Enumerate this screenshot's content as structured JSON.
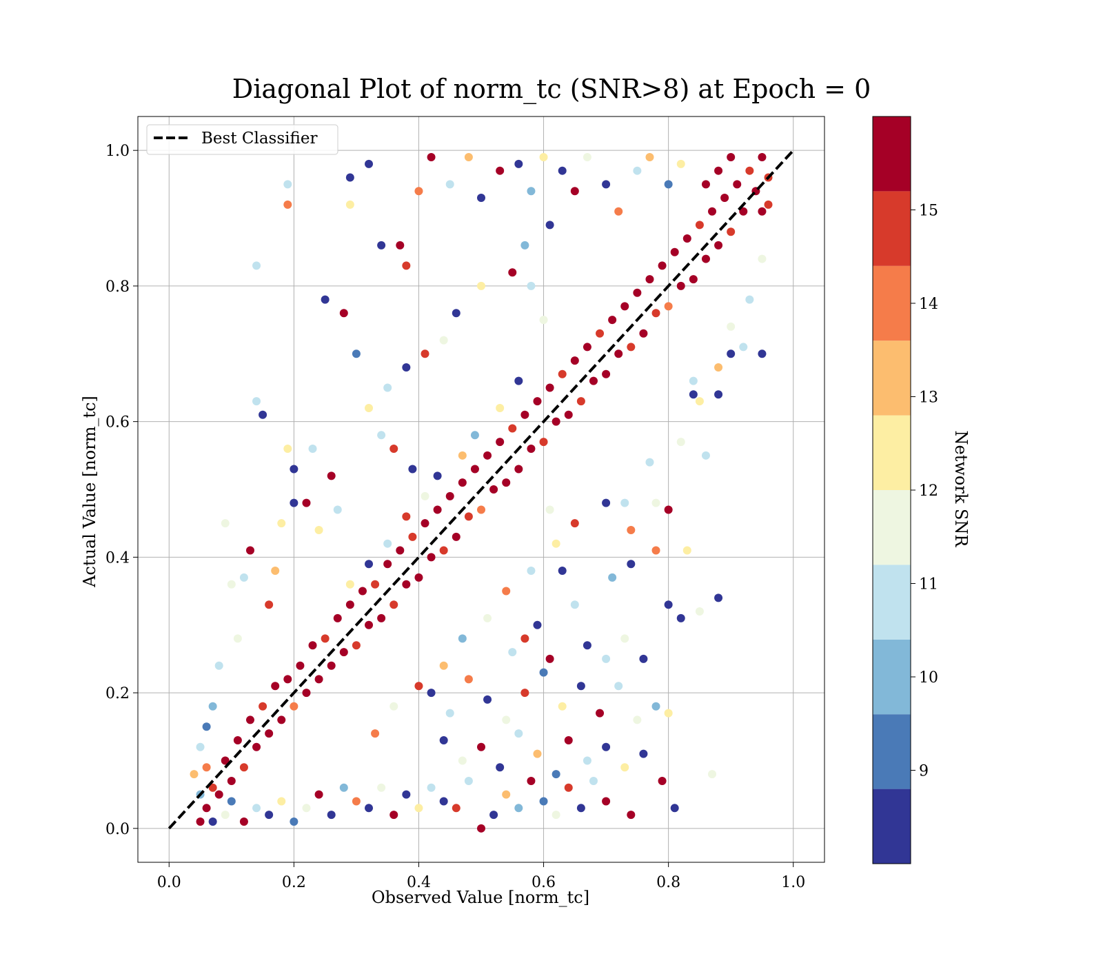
{
  "chart_data": {
    "type": "scatter",
    "title": "Diagonal Plot of norm_tc (SNR>8) at Epoch = 0",
    "xlabel": "Observed Value [norm_tc]",
    "ylabel": "Actual Value [norm_tc]",
    "xlim": [
      -0.05,
      1.05
    ],
    "ylim": [
      -0.05,
      1.05
    ],
    "xticks": [
      "0.0",
      "0.2",
      "0.4",
      "0.6",
      "0.8",
      "1.0"
    ],
    "yticks": [
      "0.0",
      "0.2",
      "0.4",
      "0.6",
      "0.8",
      "1.0"
    ],
    "grid": true,
    "legend": {
      "position": "upper-left",
      "entries": [
        {
          "label": "Best Classifier",
          "style": "dashed",
          "color": "#000000"
        }
      ]
    },
    "reference_line": {
      "label": "Best Classifier",
      "x": [
        0.0,
        1.0
      ],
      "y": [
        0.0,
        1.0
      ]
    },
    "colorbar": {
      "label": "Network SNR",
      "range": [
        8,
        16
      ],
      "ticks": [
        "9",
        "10",
        "11",
        "12",
        "13",
        "14",
        "15"
      ],
      "bins": [
        {
          "from": 8,
          "to": 8.8,
          "color": "#313695"
        },
        {
          "from": 8.8,
          "to": 9.6,
          "color": "#4a7ab7"
        },
        {
          "from": 9.6,
          "to": 10.4,
          "color": "#82b8d8"
        },
        {
          "from": 10.4,
          "to": 11.2,
          "color": "#c0e2ee"
        },
        {
          "from": 11.2,
          "to": 12.0,
          "color": "#eef6e1"
        },
        {
          "from": 12.0,
          "to": 12.8,
          "color": "#fdeea3"
        },
        {
          "from": 12.8,
          "to": 13.6,
          "color": "#fcbd6f"
        },
        {
          "from": 13.6,
          "to": 14.4,
          "color": "#f57c4a"
        },
        {
          "from": 14.4,
          "to": 15.2,
          "color": "#d73a2b"
        },
        {
          "from": 15.2,
          "to": 16.0,
          "color": "#a50026"
        }
      ]
    },
    "points": [
      [
        0.05,
        0.01,
        15.8
      ],
      [
        0.06,
        0.03,
        15.6
      ],
      [
        0.07,
        0.06,
        15.1
      ],
      [
        0.08,
        0.05,
        15.7
      ],
      [
        0.06,
        0.09,
        14.2
      ],
      [
        0.09,
        0.1,
        15.9
      ],
      [
        0.1,
        0.07,
        15.4
      ],
      [
        0.11,
        0.13,
        15.8
      ],
      [
        0.12,
        0.09,
        14.8
      ],
      [
        0.13,
        0.16,
        15.6
      ],
      [
        0.14,
        0.12,
        15.9
      ],
      [
        0.15,
        0.18,
        14.6
      ],
      [
        0.16,
        0.14,
        15.7
      ],
      [
        0.17,
        0.21,
        15.9
      ],
      [
        0.18,
        0.16,
        15.2
      ],
      [
        0.19,
        0.22,
        15.8
      ],
      [
        0.2,
        0.18,
        14.3
      ],
      [
        0.21,
        0.24,
        15.7
      ],
      [
        0.22,
        0.2,
        15.9
      ],
      [
        0.23,
        0.27,
        15.4
      ],
      [
        0.24,
        0.22,
        15.8
      ],
      [
        0.25,
        0.28,
        14.7
      ],
      [
        0.26,
        0.24,
        15.9
      ],
      [
        0.27,
        0.31,
        15.6
      ],
      [
        0.28,
        0.26,
        15.3
      ],
      [
        0.29,
        0.33,
        15.9
      ],
      [
        0.3,
        0.27,
        14.4
      ],
      [
        0.31,
        0.35,
        15.8
      ],
      [
        0.32,
        0.3,
        15.7
      ],
      [
        0.33,
        0.36,
        15.1
      ],
      [
        0.34,
        0.31,
        15.9
      ],
      [
        0.35,
        0.39,
        15.5
      ],
      [
        0.36,
        0.33,
        14.9
      ],
      [
        0.37,
        0.41,
        15.8
      ],
      [
        0.38,
        0.36,
        15.9
      ],
      [
        0.39,
        0.43,
        14.5
      ],
      [
        0.4,
        0.37,
        15.7
      ],
      [
        0.41,
        0.45,
        15.9
      ],
      [
        0.42,
        0.4,
        15.2
      ],
      [
        0.43,
        0.47,
        15.8
      ],
      [
        0.44,
        0.41,
        14.6
      ],
      [
        0.45,
        0.49,
        15.9
      ],
      [
        0.46,
        0.43,
        15.6
      ],
      [
        0.47,
        0.51,
        15.8
      ],
      [
        0.48,
        0.46,
        15.0
      ],
      [
        0.49,
        0.53,
        15.9
      ],
      [
        0.5,
        0.47,
        14.3
      ],
      [
        0.51,
        0.55,
        15.7
      ],
      [
        0.52,
        0.5,
        15.9
      ],
      [
        0.53,
        0.57,
        15.4
      ],
      [
        0.54,
        0.51,
        15.8
      ],
      [
        0.55,
        0.59,
        14.8
      ],
      [
        0.56,
        0.53,
        15.9
      ],
      [
        0.57,
        0.61,
        15.6
      ],
      [
        0.58,
        0.56,
        15.2
      ],
      [
        0.59,
        0.63,
        15.9
      ],
      [
        0.6,
        0.57,
        14.5
      ],
      [
        0.61,
        0.65,
        15.8
      ],
      [
        0.62,
        0.6,
        15.7
      ],
      [
        0.63,
        0.67,
        15.1
      ],
      [
        0.64,
        0.61,
        15.9
      ],
      [
        0.65,
        0.69,
        15.5
      ],
      [
        0.66,
        0.63,
        14.7
      ],
      [
        0.67,
        0.71,
        15.8
      ],
      [
        0.68,
        0.66,
        15.9
      ],
      [
        0.69,
        0.73,
        14.4
      ],
      [
        0.7,
        0.67,
        15.7
      ],
      [
        0.71,
        0.75,
        15.9
      ],
      [
        0.72,
        0.7,
        15.3
      ],
      [
        0.73,
        0.77,
        15.8
      ],
      [
        0.74,
        0.71,
        14.6
      ],
      [
        0.75,
        0.79,
        15.9
      ],
      [
        0.76,
        0.73,
        15.6
      ],
      [
        0.77,
        0.81,
        15.8
      ],
      [
        0.78,
        0.76,
        15.0
      ],
      [
        0.79,
        0.83,
        15.9
      ],
      [
        0.8,
        0.77,
        14.2
      ],
      [
        0.81,
        0.85,
        15.7
      ],
      [
        0.82,
        0.8,
        15.9
      ],
      [
        0.83,
        0.87,
        15.4
      ],
      [
        0.84,
        0.81,
        15.8
      ],
      [
        0.85,
        0.89,
        14.9
      ],
      [
        0.86,
        0.84,
        15.9
      ],
      [
        0.87,
        0.91,
        15.6
      ],
      [
        0.88,
        0.86,
        15.2
      ],
      [
        0.89,
        0.93,
        15.9
      ],
      [
        0.9,
        0.88,
        14.5
      ],
      [
        0.91,
        0.95,
        15.8
      ],
      [
        0.92,
        0.91,
        15.7
      ],
      [
        0.93,
        0.97,
        15.1
      ],
      [
        0.94,
        0.94,
        15.9
      ],
      [
        0.95,
        0.99,
        15.5
      ],
      [
        0.96,
        0.96,
        14.8
      ],
      [
        0.9,
        0.99,
        15.8
      ],
      [
        0.88,
        0.97,
        15.9
      ],
      [
        0.86,
        0.95,
        15.6
      ],
      [
        0.95,
        0.91,
        15.3
      ],
      [
        0.96,
        0.92,
        14.6
      ],
      [
        0.19,
        0.95,
        10.8
      ],
      [
        0.19,
        0.92,
        14.3
      ],
      [
        0.14,
        0.83,
        11.0
      ],
      [
        0.29,
        0.96,
        8.2
      ],
      [
        0.32,
        0.98,
        8.3
      ],
      [
        0.37,
        0.86,
        15.8
      ],
      [
        0.34,
        0.86,
        8.4
      ],
      [
        0.4,
        0.94,
        14.2
      ],
      [
        0.38,
        0.83,
        15.1
      ],
      [
        0.25,
        0.78,
        8.5
      ],
      [
        0.29,
        0.92,
        12.4
      ],
      [
        0.42,
        0.99,
        15.7
      ],
      [
        0.45,
        0.95,
        11.1
      ],
      [
        0.48,
        0.99,
        12.8
      ],
      [
        0.5,
        0.93,
        8.6
      ],
      [
        0.53,
        0.97,
        15.5
      ],
      [
        0.56,
        0.98,
        8.3
      ],
      [
        0.58,
        0.94,
        10.1
      ],
      [
        0.6,
        0.99,
        12.2
      ],
      [
        0.63,
        0.97,
        8.7
      ],
      [
        0.65,
        0.94,
        15.3
      ],
      [
        0.67,
        0.99,
        11.3
      ],
      [
        0.7,
        0.95,
        8.2
      ],
      [
        0.72,
        0.91,
        14.1
      ],
      [
        0.75,
        0.97,
        10.9
      ],
      [
        0.77,
        0.99,
        13.2
      ],
      [
        0.8,
        0.95,
        8.8
      ],
      [
        0.82,
        0.98,
        12.1
      ],
      [
        0.61,
        0.89,
        8.4
      ],
      [
        0.57,
        0.86,
        10.2
      ],
      [
        0.55,
        0.82,
        15.9
      ],
      [
        0.5,
        0.8,
        12.6
      ],
      [
        0.46,
        0.76,
        8.5
      ],
      [
        0.44,
        0.72,
        11.2
      ],
      [
        0.41,
        0.7,
        14.7
      ],
      [
        0.38,
        0.68,
        8.3
      ],
      [
        0.35,
        0.65,
        10.6
      ],
      [
        0.32,
        0.62,
        12.3
      ],
      [
        0.3,
        0.7,
        8.9
      ],
      [
        0.28,
        0.76,
        15.6
      ],
      [
        0.14,
        0.63,
        10.7
      ],
      [
        0.15,
        0.61,
        8.2
      ],
      [
        0.19,
        0.56,
        12.1
      ],
      [
        0.2,
        0.53,
        8.6
      ],
      [
        0.23,
        0.56,
        10.9
      ],
      [
        0.26,
        0.52,
        15.8
      ],
      [
        0.2,
        0.48,
        8.4
      ],
      [
        0.18,
        0.45,
        12.7
      ],
      [
        0.13,
        0.41,
        15.9
      ],
      [
        0.12,
        0.37,
        10.5
      ],
      [
        0.09,
        0.45,
        11.6
      ],
      [
        0.17,
        0.38,
        13.1
      ],
      [
        0.16,
        0.33,
        14.4
      ],
      [
        0.1,
        0.36,
        11.8
      ],
      [
        0.22,
        0.48,
        15.7
      ],
      [
        0.27,
        0.47,
        10.8
      ],
      [
        0.24,
        0.44,
        12.2
      ],
      [
        0.34,
        0.58,
        11.0
      ],
      [
        0.36,
        0.56,
        14.6
      ],
      [
        0.39,
        0.53,
        8.7
      ],
      [
        0.11,
        0.28,
        11.9
      ],
      [
        0.08,
        0.24,
        10.4
      ],
      [
        0.07,
        0.18,
        9.8
      ],
      [
        0.06,
        0.15,
        9.2
      ],
      [
        0.05,
        0.12,
        10.7
      ],
      [
        0.04,
        0.08,
        13.2
      ],
      [
        0.05,
        0.05,
        10.1
      ],
      [
        0.07,
        0.01,
        8.6
      ],
      [
        0.09,
        0.02,
        11.5
      ],
      [
        0.1,
        0.04,
        9.4
      ],
      [
        0.12,
        0.01,
        15.7
      ],
      [
        0.14,
        0.03,
        10.8
      ],
      [
        0.16,
        0.02,
        8.3
      ],
      [
        0.18,
        0.04,
        12.6
      ],
      [
        0.2,
        0.01,
        8.9
      ],
      [
        0.22,
        0.03,
        11.2
      ],
      [
        0.24,
        0.05,
        15.4
      ],
      [
        0.26,
        0.02,
        8.5
      ],
      [
        0.28,
        0.06,
        10.3
      ],
      [
        0.3,
        0.04,
        14.1
      ],
      [
        0.32,
        0.03,
        8.7
      ],
      [
        0.34,
        0.06,
        11.7
      ],
      [
        0.36,
        0.02,
        15.9
      ],
      [
        0.38,
        0.05,
        8.4
      ],
      [
        0.4,
        0.03,
        12.1
      ],
      [
        0.42,
        0.06,
        10.6
      ],
      [
        0.44,
        0.04,
        8.2
      ],
      [
        0.46,
        0.03,
        14.8
      ],
      [
        0.48,
        0.07,
        11.1
      ],
      [
        0.5,
        0.0,
        15.8
      ],
      [
        0.52,
        0.02,
        8.6
      ],
      [
        0.54,
        0.05,
        12.9
      ],
      [
        0.56,
        0.03,
        10.2
      ],
      [
        0.58,
        0.07,
        15.3
      ],
      [
        0.6,
        0.04,
        8.8
      ],
      [
        0.62,
        0.02,
        11.4
      ],
      [
        0.64,
        0.06,
        14.5
      ],
      [
        0.66,
        0.03,
        8.3
      ],
      [
        0.68,
        0.07,
        10.9
      ],
      [
        0.7,
        0.04,
        15.6
      ],
      [
        0.44,
        0.13,
        8.5
      ],
      [
        0.47,
        0.1,
        11.3
      ],
      [
        0.5,
        0.12,
        15.2
      ],
      [
        0.53,
        0.09,
        8.4
      ],
      [
        0.56,
        0.14,
        10.5
      ],
      [
        0.59,
        0.11,
        13.0
      ],
      [
        0.62,
        0.08,
        8.9
      ],
      [
        0.64,
        0.13,
        15.8
      ],
      [
        0.67,
        0.1,
        11.0
      ],
      [
        0.7,
        0.12,
        8.3
      ],
      [
        0.73,
        0.09,
        12.5
      ],
      [
        0.76,
        0.11,
        8.7
      ],
      [
        0.79,
        0.07,
        15.9
      ],
      [
        0.81,
        0.03,
        8.5
      ],
      [
        0.74,
        0.02,
        15.5
      ],
      [
        0.87,
        0.08,
        11.7
      ],
      [
        0.42,
        0.2,
        8.6
      ],
      [
        0.45,
        0.17,
        10.4
      ],
      [
        0.48,
        0.22,
        14.0
      ],
      [
        0.51,
        0.19,
        8.2
      ],
      [
        0.54,
        0.16,
        11.6
      ],
      [
        0.57,
        0.2,
        15.1
      ],
      [
        0.6,
        0.23,
        8.9
      ],
      [
        0.63,
        0.18,
        12.3
      ],
      [
        0.66,
        0.21,
        8.4
      ],
      [
        0.69,
        0.17,
        15.7
      ],
      [
        0.72,
        0.21,
        10.8
      ],
      [
        0.75,
        0.16,
        11.9
      ],
      [
        0.78,
        0.18,
        10.1
      ],
      [
        0.8,
        0.17,
        12.4
      ],
      [
        0.67,
        0.27,
        8.5
      ],
      [
        0.7,
        0.25,
        10.9
      ],
      [
        0.73,
        0.28,
        11.8
      ],
      [
        0.76,
        0.25,
        8.3
      ],
      [
        0.8,
        0.33,
        8.6
      ],
      [
        0.82,
        0.31,
        8.5
      ],
      [
        0.85,
        0.32,
        11.6
      ],
      [
        0.88,
        0.34,
        8.2
      ],
      [
        0.71,
        0.37,
        9.8
      ],
      [
        0.74,
        0.39,
        8.5
      ],
      [
        0.7,
        0.48,
        8.7
      ],
      [
        0.73,
        0.48,
        10.6
      ],
      [
        0.78,
        0.48,
        11.3
      ],
      [
        0.8,
        0.47,
        15.9
      ],
      [
        0.78,
        0.41,
        14.3
      ],
      [
        0.83,
        0.41,
        12.4
      ],
      [
        0.74,
        0.44,
        14.2
      ],
      [
        0.77,
        0.54,
        11.1
      ],
      [
        0.82,
        0.57,
        11.2
      ],
      [
        0.86,
        0.55,
        10.7
      ],
      [
        0.84,
        0.64,
        8.4
      ],
      [
        0.88,
        0.64,
        8.6
      ],
      [
        0.9,
        0.7,
        8.3
      ],
      [
        0.92,
        0.71,
        11.1
      ],
      [
        0.95,
        0.7,
        8.2
      ],
      [
        0.84,
        0.66,
        10.8
      ],
      [
        0.88,
        0.68,
        12.9
      ],
      [
        0.9,
        0.74,
        11.9
      ],
      [
        0.93,
        0.78,
        10.5
      ],
      [
        0.95,
        0.84,
        11.3
      ],
      [
        0.61,
        0.47,
        11.8
      ],
      [
        0.63,
        0.38,
        8.5
      ],
      [
        0.65,
        0.33,
        10.7
      ],
      [
        0.59,
        0.3,
        8.4
      ],
      [
        0.57,
        0.28,
        14.6
      ],
      [
        0.55,
        0.26,
        11.0
      ],
      [
        0.61,
        0.25,
        15.4
      ],
      [
        0.85,
        0.63,
        12.6
      ],
      [
        0.58,
        0.8,
        10.4
      ],
      [
        0.6,
        0.75,
        11.8
      ],
      [
        0.56,
        0.66,
        8.6
      ],
      [
        0.53,
        0.62,
        12.7
      ],
      [
        0.49,
        0.58,
        10.3
      ],
      [
        0.47,
        0.55,
        13.5
      ],
      [
        0.43,
        0.52,
        8.5
      ],
      [
        0.41,
        0.49,
        11.2
      ],
      [
        0.38,
        0.46,
        14.9
      ],
      [
        0.35,
        0.42,
        10.7
      ],
      [
        0.32,
        0.39,
        8.4
      ],
      [
        0.29,
        0.36,
        12.5
      ],
      [
        0.65,
        0.45,
        14.8
      ],
      [
        0.62,
        0.42,
        12.3
      ],
      [
        0.58,
        0.38,
        10.6
      ],
      [
        0.54,
        0.35,
        13.8
      ],
      [
        0.51,
        0.31,
        11.5
      ],
      [
        0.47,
        0.28,
        9.9
      ],
      [
        0.44,
        0.24,
        12.8
      ],
      [
        0.4,
        0.21,
        14.5
      ],
      [
        0.36,
        0.18,
        11.3
      ],
      [
        0.33,
        0.14,
        13.6
      ]
    ]
  }
}
